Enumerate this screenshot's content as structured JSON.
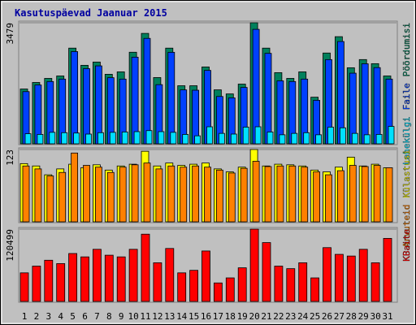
{
  "chart_data": [
    {
      "type": "bar",
      "title": "Kasutuspäevad Jaanuar 2015",
      "ylim": [
        0,
        3479
      ],
      "yticks": [
        3479
      ],
      "series": [
        {
          "name": "Pöördumisi",
          "color": "#00805c",
          "values": [
            1575,
            1763,
            1880,
            1950,
            2750,
            2256,
            2350,
            1998,
            2068,
            2632,
            3173,
            1904,
            2750,
            1669,
            1669,
            2209,
            1551,
            1434,
            1716,
            3479,
            2750,
            2045,
            1880,
            2068,
            1340,
            2609,
            3079,
            2186,
            2421,
            2303,
            1950
          ]
        },
        {
          "name": "Faile",
          "color": "#0040ff",
          "values": [
            1500,
            1690,
            1790,
            1860,
            2650,
            2160,
            2240,
            1900,
            1860,
            2490,
            3030,
            1700,
            2630,
            1550,
            1540,
            2110,
            1360,
            1320,
            1620,
            3290,
            2600,
            1810,
            1790,
            1860,
            1250,
            2420,
            2940,
            2030,
            2300,
            2190,
            1860
          ]
        },
        {
          "name": "Lehekülgi",
          "color": "#00e0ff",
          "values": [
            290,
            270,
            330,
            320,
            310,
            280,
            320,
            330,
            340,
            350,
            380,
            350,
            330,
            270,
            230,
            490,
            300,
            280,
            480,
            490,
            340,
            260,
            300,
            320,
            260,
            480,
            460,
            300,
            260,
            270,
            500
          ]
        }
      ]
    },
    {
      "type": "bar",
      "ylim": [
        0,
        123
      ],
      "yticks": [
        123
      ],
      "series": [
        {
          "name": "Külastusi",
          "color": "#ffff00",
          "values": [
            99,
            95,
            80,
            90,
            98,
            92,
            97,
            88,
            95,
            98,
            120,
            95,
            100,
            96,
            98,
            100,
            90,
            85,
            93,
            123,
            95,
            98,
            97,
            95,
            88,
            85,
            93,
            110,
            95,
            98,
            92
          ]
        },
        {
          "name": "Arvuteid",
          "color": "#ff8000",
          "values": [
            95,
            90,
            78,
            84,
            117,
            96,
            93,
            84,
            93,
            97,
            100,
            90,
            95,
            93,
            95,
            93,
            88,
            83,
            91,
            103,
            94,
            95,
            95,
            93,
            85,
            80,
            87,
            96,
            94,
            96,
            92
          ]
        }
      ]
    },
    {
      "type": "bar",
      "ylim": [
        0,
        120499
      ],
      "yticks": [
        120499
      ],
      "categories": [
        "1",
        "2",
        "3",
        "4",
        "5",
        "6",
        "7",
        "8",
        "9",
        "10",
        "11",
        "12",
        "13",
        "14",
        "15",
        "16",
        "17",
        "18",
        "19",
        "20",
        "21",
        "22",
        "23",
        "24",
        "25",
        "26",
        "27",
        "28",
        "29",
        "30",
        "31"
      ],
      "label_colors": [
        "#000000",
        "#000000",
        "#008040",
        "#008040",
        "#000000",
        "#000000",
        "#000000",
        "#000000",
        "#000000",
        "#008040",
        "#008040",
        "#000000",
        "#000000",
        "#000000",
        "#000000",
        "#000000",
        "#008040",
        "#008040",
        "#000000",
        "#000000",
        "#000000",
        "#000000",
        "#000000",
        "#008040",
        "#008040",
        "#000000",
        "#000000",
        "#000000",
        "#000000",
        "#000000",
        "#008040"
      ],
      "series": [
        {
          "name": "KBaite",
          "color": "#ff0000",
          "values": [
            47634,
            58842,
            68649,
            63045,
            79857,
            74253,
            86862,
            77055,
            74253,
            86862,
            112080,
            64446,
            88263,
            47634,
            51837,
            84060,
            30822,
            39228,
            56040,
            120499,
            98070,
            58842,
            54639,
            64446,
            39228,
            89664,
            78456,
            75654,
            86862,
            64446,
            105075
          ]
        }
      ]
    }
  ]
}
